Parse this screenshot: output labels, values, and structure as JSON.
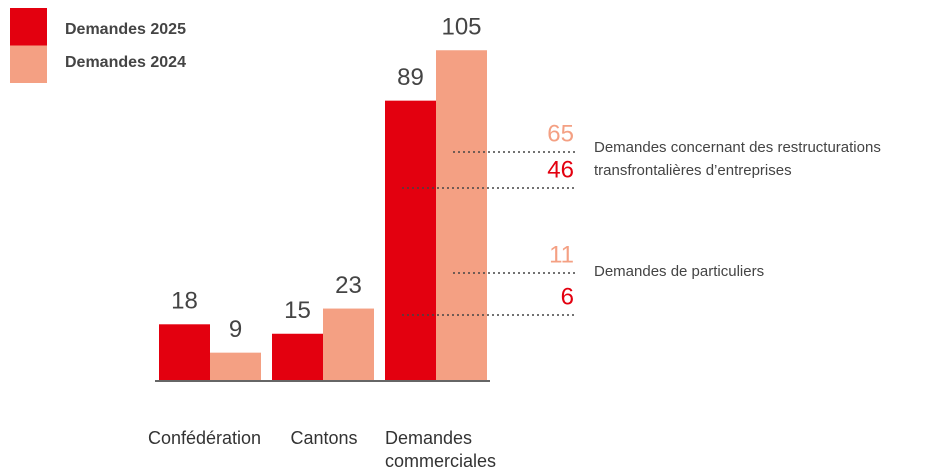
{
  "chart_data": {
    "type": "bar",
    "categories": [
      "Confédération",
      "Cantons",
      "Demandes commerciales"
    ],
    "series": [
      {
        "name": "Demandes 2025",
        "color": "#e3000f",
        "values": [
          18,
          15,
          89
        ]
      },
      {
        "name": "Demandes 2024",
        "color": "#f4a083",
        "values": [
          9,
          23,
          105
        ]
      }
    ],
    "ylim": [
      0,
      110
    ],
    "breakdown": [
      {
        "label": "Demandes concernant des restructurations transfrontalières d’entreprises",
        "values": [
          46,
          65
        ]
      },
      {
        "label": "Demandes de particuliers",
        "values": [
          6,
          11
        ]
      }
    ]
  }
}
